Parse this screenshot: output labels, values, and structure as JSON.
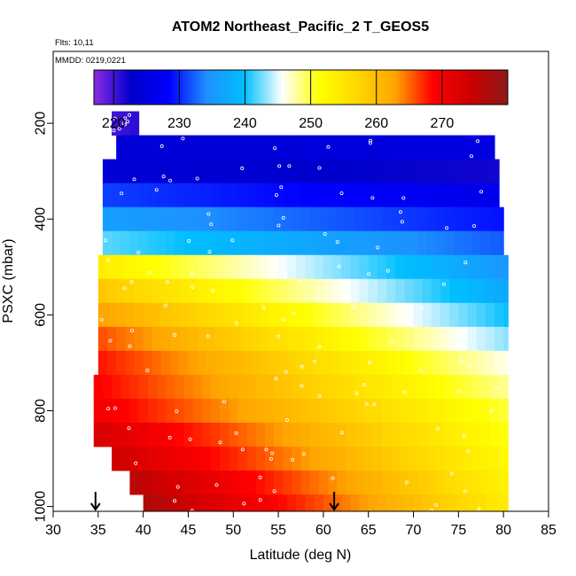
{
  "chart_data": {
    "type": "heatmap",
    "title": "ATOM2 Northeast_Pacific_2 T_GEOS5",
    "annotations": [
      "Flts: 10,11",
      "MMDD: 0219,0221"
    ],
    "xlabel": "Latitude (deg N)",
    "ylabel": "PSXC (mbar)",
    "xlim": [
      30,
      85
    ],
    "ylim": [
      1010,
      50
    ],
    "xticks": [
      30,
      35,
      40,
      45,
      50,
      55,
      60,
      65,
      70,
      75,
      80,
      85
    ],
    "yticks": [
      200,
      400,
      600,
      800,
      1000
    ],
    "colorbar": {
      "range": [
        217,
        280
      ],
      "ticks": [
        220,
        230,
        240,
        250,
        260,
        270
      ],
      "colors": [
        "#8a2be2",
        "#0000cc",
        "#0000ff",
        "#1e90ff",
        "#00bfff",
        "#ffffff",
        "#ffff00",
        "#ffd700",
        "#ffa500",
        "#ff0000",
        "#cc0000",
        "#8b1a1a"
      ]
    },
    "pressure_bands": [
      {
        "p": 200,
        "lat_start": 36.5,
        "lat_end": 39.5,
        "t_start": 220,
        "t_end": 221
      },
      {
        "p": 250,
        "lat_start": 37.0,
        "lat_end": 79.0,
        "t_start": 224,
        "t_end": 225
      },
      {
        "p": 300,
        "lat_start": 35.5,
        "lat_end": 79.5,
        "t_start": 224,
        "t_end": 222
      },
      {
        "p": 350,
        "lat_start": 35.5,
        "lat_end": 79.5,
        "t_start": 231,
        "t_end": 226
      },
      {
        "p": 400,
        "lat_start": 35.5,
        "lat_end": 80.0,
        "t_start": 236,
        "t_end": 229
      },
      {
        "p": 450,
        "lat_start": 35.5,
        "lat_end": 80.0,
        "t_start": 242,
        "t_end": 232
      },
      {
        "p": 500,
        "lat_start": 35.0,
        "lat_end": 80.5,
        "t_start": 254,
        "t_end": 235
      },
      {
        "p": 550,
        "lat_start": 35.0,
        "lat_end": 80.5,
        "t_start": 259,
        "t_end": 237
      },
      {
        "p": 600,
        "lat_start": 35.0,
        "lat_end": 80.5,
        "t_start": 263,
        "t_end": 240
      },
      {
        "p": 650,
        "lat_start": 35.0,
        "lat_end": 80.5,
        "t_start": 266,
        "t_end": 243
      },
      {
        "p": 700,
        "lat_start": 35.0,
        "lat_end": 80.5,
        "t_start": 268,
        "t_end": 246
      },
      {
        "p": 750,
        "lat_start": 34.5,
        "lat_end": 80.5,
        "t_start": 269,
        "t_end": 248
      },
      {
        "p": 800,
        "lat_start": 34.5,
        "lat_end": 80.5,
        "t_start": 270,
        "t_end": 250
      },
      {
        "p": 850,
        "lat_start": 34.5,
        "lat_end": 80.5,
        "t_start": 273,
        "t_end": 251
      },
      {
        "p": 900,
        "lat_start": 36.5,
        "lat_end": 80.5,
        "t_start": 274,
        "t_end": 252
      },
      {
        "p": 950,
        "lat_start": 38.5,
        "lat_end": 80.5,
        "t_start": 276,
        "t_end": 253
      },
      {
        "p": 1000,
        "lat_start": 40.0,
        "lat_end": 80.5,
        "t_start": 277,
        "t_end": 254
      }
    ],
    "arrow_markers_lat": [
      34.7,
      61.2
    ]
  }
}
